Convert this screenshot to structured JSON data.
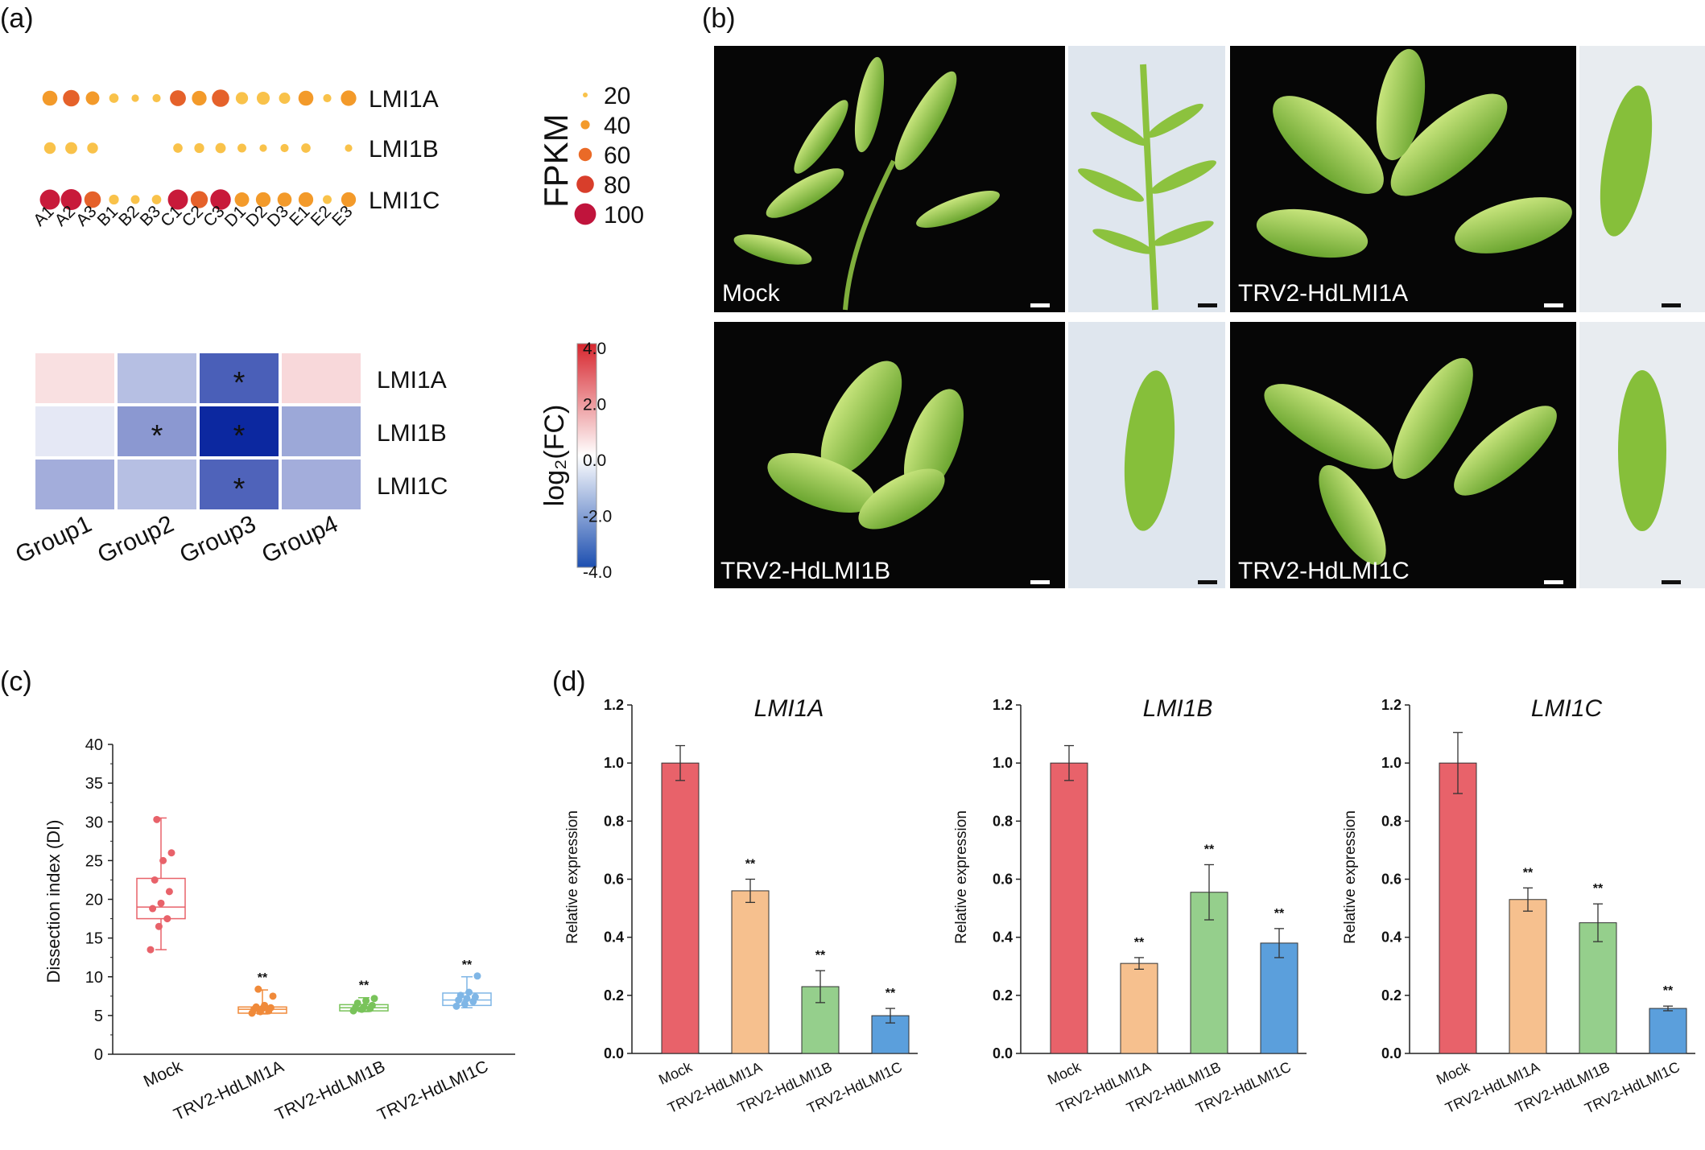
{
  "panel_labels": [
    "(a)",
    "(b)",
    "(c)",
    "(d)"
  ],
  "colors": {
    "mock": "#e8626a",
    "lmi1a": "#f6c08e",
    "lmi1b": "#95cf8c",
    "lmi1c": "#5b9fdc",
    "box_mock": "#e8626a",
    "box_lmi1a": "#f08a3a",
    "box_lmi1b": "#79c35a",
    "box_lmi1c": "#7fb6e6"
  },
  "chart_data": [
    {
      "id": "fpkm_bubble",
      "type": "scatter",
      "x": [
        "A1",
        "A2",
        "A3",
        "B1",
        "B2",
        "B3",
        "C1",
        "C2",
        "C3",
        "D1",
        "D2",
        "D3",
        "E1",
        "E2",
        "E3"
      ],
      "genes": [
        "LMI1A",
        "LMI1B",
        "LMI1C"
      ],
      "values": [
        [
          42,
          55,
          32,
          10,
          4,
          6,
          50,
          40,
          62,
          24,
          28,
          18,
          42,
          6,
          46
        ],
        [
          20,
          22,
          16,
          0,
          0,
          0,
          10,
          12,
          14,
          8,
          4,
          6,
          10,
          0,
          4
        ],
        [
          90,
          100,
          55,
          12,
          8,
          10,
          90,
          60,
          95,
          38,
          40,
          36,
          40,
          8,
          40
        ]
      ],
      "legend_title": "FPKM",
      "legend_values": [
        20,
        40,
        60,
        80,
        100
      ],
      "legend_colors": [
        "#f9c24a",
        "#f39a2a",
        "#ea6a27",
        "#d83e2b",
        "#c0143c"
      ]
    },
    {
      "id": "log2fc_heatmap",
      "type": "heatmap",
      "columns": [
        "Group1",
        "Group2",
        "Group3",
        "Group4"
      ],
      "rows": [
        "LMI1A",
        "LMI1B",
        "LMI1C"
      ],
      "values": [
        [
          0.3,
          -0.8,
          -2.7,
          0.4
        ],
        [
          -0.2,
          -1.5,
          -4.0,
          -1.2
        ],
        [
          -1.1,
          -0.8,
          -2.6,
          -1.1
        ]
      ],
      "significant": [
        [
          false,
          false,
          true,
          false
        ],
        [
          false,
          true,
          true,
          false
        ],
        [
          false,
          false,
          true,
          false
        ]
      ],
      "mark": "*",
      "colorbar_label": "log₂(FC)",
      "colorbar_ticks": [
        "4.0",
        "2.0",
        "0.0",
        "-2.0",
        "-4.0"
      ],
      "range": [
        -4.0,
        4.0
      ]
    },
    {
      "id": "dissection_index",
      "type": "scatter",
      "ylabel": "Dissection index (DI)",
      "ylim": [
        0,
        40
      ],
      "yticks": [
        "0",
        "5",
        "10",
        "15",
        "20",
        "25",
        "30",
        "35",
        "40"
      ],
      "categories": [
        "Mock",
        "TRV2-HdLMI1A",
        "TRV2-HdLMI1B",
        "TRV2-HdLMI1C"
      ],
      "boxes": [
        {
          "q1": 17.5,
          "median": 19.0,
          "q3": 22.7,
          "whisker_low": 13.5,
          "whisker_high": 30.5,
          "mean": 20.5
        },
        {
          "q1": 5.3,
          "median": 5.8,
          "q3": 6.1,
          "whisker_low": 5.2,
          "whisker_high": 8.3,
          "mean": 5.8
        },
        {
          "q1": 5.6,
          "median": 6.0,
          "q3": 6.4,
          "whisker_low": 5.5,
          "whisker_high": 7.3,
          "mean": 6.0
        },
        {
          "q1": 6.3,
          "median": 7.0,
          "q3": 7.9,
          "whisker_low": 6.0,
          "whisker_high": 10.0,
          "mean": 7.2
        }
      ],
      "points": [
        [
          13.5,
          16.5,
          17.5,
          18.8,
          19.5,
          21.0,
          22.5,
          25.0,
          26.0,
          30.3
        ],
        [
          5.3,
          5.5,
          5.6,
          5.8,
          5.9,
          6.0,
          6.1,
          6.3,
          7.5,
          8.4
        ],
        [
          5.6,
          5.8,
          5.9,
          6.0,
          6.1,
          6.3,
          6.6,
          6.9,
          7.2
        ],
        [
          6.2,
          6.5,
          6.8,
          7.0,
          7.2,
          7.4,
          7.6,
          8.0,
          10.1
        ]
      ],
      "significance": [
        "",
        "**",
        "**",
        "**"
      ]
    },
    {
      "id": "lmi1a_expression",
      "type": "bar",
      "title": "LMI1A",
      "ylabel": "Relative expression",
      "ylim": [
        0,
        1.2
      ],
      "yticks": [
        "0.0",
        "0.2",
        "0.4",
        "0.6",
        "0.8",
        "1.0",
        "1.2"
      ],
      "categories": [
        "Mock",
        "TRV2-HdLMI1A",
        "TRV2-HdLMI1B",
        "TRV2-HdLMI1C"
      ],
      "values": [
        1.0,
        0.56,
        0.23,
        0.13
      ],
      "errors": [
        0.06,
        0.04,
        0.055,
        0.025
      ],
      "significance": [
        "",
        "**",
        "**",
        "**"
      ]
    },
    {
      "id": "lmi1b_expression",
      "type": "bar",
      "title": "LMI1B",
      "ylabel": "Relative expression",
      "ylim": [
        0,
        1.2
      ],
      "yticks": [
        "0.0",
        "0.2",
        "0.4",
        "0.6",
        "0.8",
        "1.0",
        "1.2"
      ],
      "categories": [
        "Mock",
        "TRV2-HdLMI1A",
        "TRV2-HdLMI1B",
        "TRV2-HdLMI1C"
      ],
      "values": [
        1.0,
        0.31,
        0.555,
        0.38
      ],
      "errors": [
        0.06,
        0.02,
        0.095,
        0.05
      ],
      "significance": [
        "",
        "**",
        "**",
        "**"
      ]
    },
    {
      "id": "lmi1c_expression",
      "type": "bar",
      "title": "LMI1C",
      "ylabel": "Relative expression",
      "ylim": [
        0,
        1.2
      ],
      "yticks": [
        "0.0",
        "0.2",
        "0.4",
        "0.6",
        "0.8",
        "1.0",
        "1.2"
      ],
      "categories": [
        "Mock",
        "TRV2-HdLMI1A",
        "TRV2-HdLMI1B",
        "TRV2-HdLMI1C"
      ],
      "values": [
        1.0,
        0.53,
        0.45,
        0.155
      ],
      "errors": [
        0.105,
        0.04,
        0.065,
        0.008
      ],
      "significance": [
        "",
        "**",
        "**",
        "**"
      ]
    }
  ],
  "photos": [
    {
      "label": "Mock",
      "icon": "plant-photo"
    },
    {
      "label": "TRV2-HdLMI1A",
      "icon": "plant-photo"
    },
    {
      "label": "TRV2-HdLMI1B",
      "icon": "plant-photo"
    },
    {
      "label": "TRV2-HdLMI1C",
      "icon": "plant-photo"
    }
  ]
}
